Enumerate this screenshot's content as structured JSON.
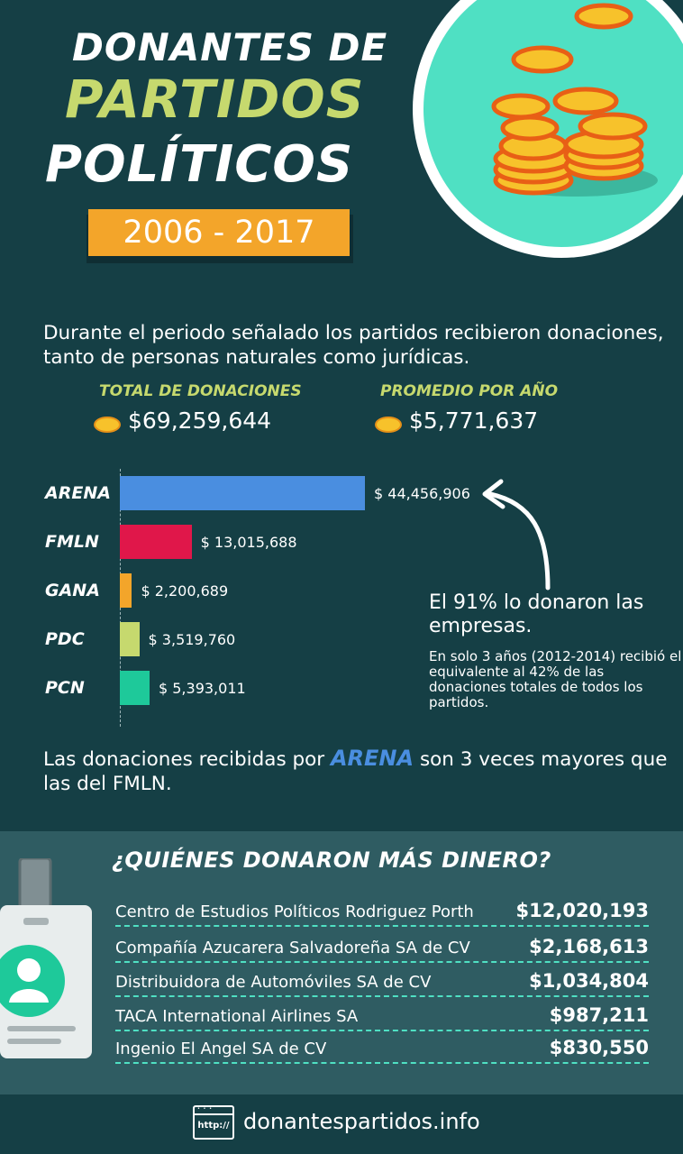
{
  "header": {
    "title_line1": "DONANTES DE",
    "title_line2": "PARTIDOS",
    "title_line3": "POLÍTICOS",
    "years": "2006 - 2017"
  },
  "intro": {
    "text": "Durante el periodo señalado los partidos recibieron donaciones, tanto de personas naturales como jurídicas."
  },
  "stats": {
    "total_label": "TOTAL DE DONACIONES",
    "total_value": "$69,259,644",
    "avg_label": "PROMEDIO POR AÑO",
    "avg_value": "$5,771,637"
  },
  "chart_data": {
    "type": "bar",
    "orientation": "horizontal",
    "categories": [
      "ARENA",
      "FMLN",
      "GANA",
      "PDC",
      "PCN"
    ],
    "values": [
      44456906,
      13015688,
      2200689,
      3519760,
      5393011
    ],
    "value_labels": [
      "$ 44,456,906",
      "$ 13,015,688",
      "$ 2,200,689",
      "$ 3,519,760",
      "$ 5,393,011"
    ],
    "colors": [
      "#4a8ee0",
      "#e0174a",
      "#f3a52a",
      "#c6d96e",
      "#1ec99a"
    ],
    "title": "",
    "xlabel": "",
    "ylabel": ""
  },
  "annotation": {
    "main": "El 91% lo donaron las empresas.",
    "detail": "En solo 3 años (2012-2014) recibió el equivalente al 42% de las donaciones totales de todos los partidos."
  },
  "comparison": {
    "before": "Las donaciones recibidas por",
    "party": "ARENA",
    "after": "son 3 veces mayores que las del FMLN."
  },
  "donors": {
    "heading": "¿QUIÉNES DONARON MÁS DINERO?",
    "items": [
      {
        "name": "Centro de Estudios Políticos Rodriguez Porth",
        "amount": "$12,020,193"
      },
      {
        "name": "Compañía Azucarera Salvadoreña SA de CV",
        "amount": "$2,168,613"
      },
      {
        "name": "Distribuidora de Automóviles SA de CV",
        "amount": "$1,034,804"
      },
      {
        "name": "TACA International Airlines SA",
        "amount": "$987,211"
      },
      {
        "name": "Ingenio El Angel SA de CV",
        "amount": "$830,550"
      }
    ]
  },
  "footer": {
    "icon_text": "http://",
    "url": "donantespartidos.info"
  },
  "icons": [
    "coin-stack-icon",
    "coin-icon",
    "arrow-icon",
    "id-badge-icon",
    "browser-icon"
  ]
}
